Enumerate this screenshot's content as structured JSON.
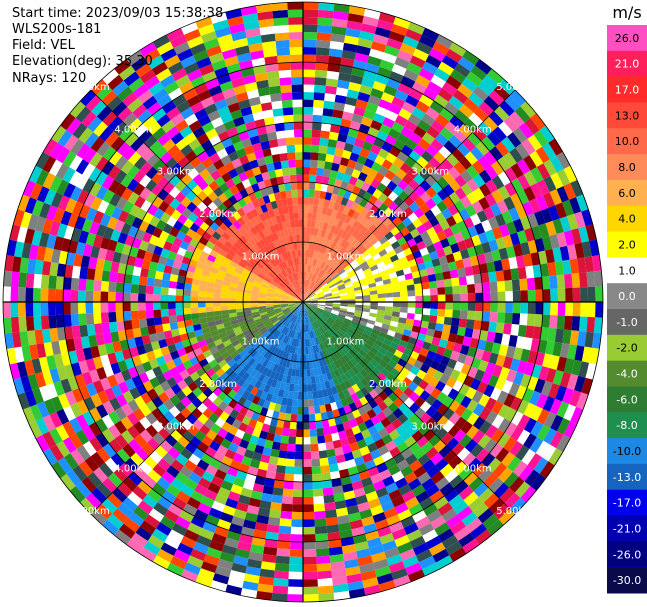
{
  "header": {
    "start_time": "Start time: 2023/09/03 15:38:38",
    "instrument": "WLS200s-181",
    "field": "Field: VEL",
    "elevation": "Elevation(deg): 35.30",
    "nrays": "NRays: 120"
  },
  "chart_data": {
    "type": "heatmap",
    "projection": "polar-ppi",
    "field": "VEL",
    "units": "m/s",
    "n_rays": 120,
    "elevation_deg": 35.3,
    "range_max_km": 5.0,
    "range_rings_km": [
      1.0,
      2.0,
      3.0,
      4.0,
      5.0
    ],
    "ring_labels": [
      "1.00km",
      "2.00km",
      "3.00km",
      "4.00km",
      "5.00km"
    ],
    "radial_lines": "every 45 deg",
    "colorbar": {
      "unit_label": "m/s",
      "ticks": [
        "26.0",
        "21.0",
        "17.0",
        "13.0",
        "10.0",
        "8.0",
        "6.0",
        "4.0",
        "2.0",
        "1.0",
        "0.0",
        "-1.0",
        "-2.0",
        "-4.0",
        "-6.0",
        "-8.0",
        "-10.0",
        "-13.0",
        "-17.0",
        "-21.0",
        "-26.0",
        "-30.0"
      ],
      "colors": [
        "#ff4fc0",
        "#ff1f5a",
        "#ff2a2a",
        "#ff4a3a",
        "#ff6a4a",
        "#ff8a5a",
        "#ffb14f",
        "#ffd700",
        "#ffff00",
        "#ffffff",
        "#888888",
        "#666666",
        "#99cc33",
        "#558b2f",
        "#2e7d32",
        "#1f8f4f",
        "#1e88e5",
        "#1565c0",
        "#0000ee",
        "#0000b0",
        "#000080",
        "#0a0a4a"
      ]
    },
    "noise_colors": [
      "#ff1493",
      "#ff69b4",
      "#ffff00",
      "#0000cd",
      "#00008b",
      "#ff4500",
      "#9acd32",
      "#00ced1",
      "#1e90ff",
      "#dc143c",
      "#ffa500",
      "#228b22",
      "#2f4f4f",
      "#ff00ff",
      "#808080",
      "#32cd32",
      "#ffffff",
      "#8b0000"
    ],
    "velocity_field": {
      "description_sectors": [
        {
          "az_from_deg": 300,
          "az_to_deg": 360,
          "value_ms": 13.0
        },
        {
          "az_from_deg": 0,
          "az_to_deg": 50,
          "value_ms": 10.0
        },
        {
          "az_from_deg": 50,
          "az_to_deg": 90,
          "value_ms": 2.0
        },
        {
          "az_from_deg": 90,
          "az_to_deg": 110,
          "value_ms": 0.0
        },
        {
          "az_from_deg": 110,
          "az_to_deg": 160,
          "value_ms": -6.0
        },
        {
          "az_from_deg": 160,
          "az_to_deg": 230,
          "value_ms": -10.0
        },
        {
          "az_from_deg": 230,
          "az_to_deg": 265,
          "value_ms": -2.0
        },
        {
          "az_from_deg": 265,
          "az_to_deg": 300,
          "value_ms": 6.0
        }
      ],
      "valid_range_km": 1.6
    }
  }
}
